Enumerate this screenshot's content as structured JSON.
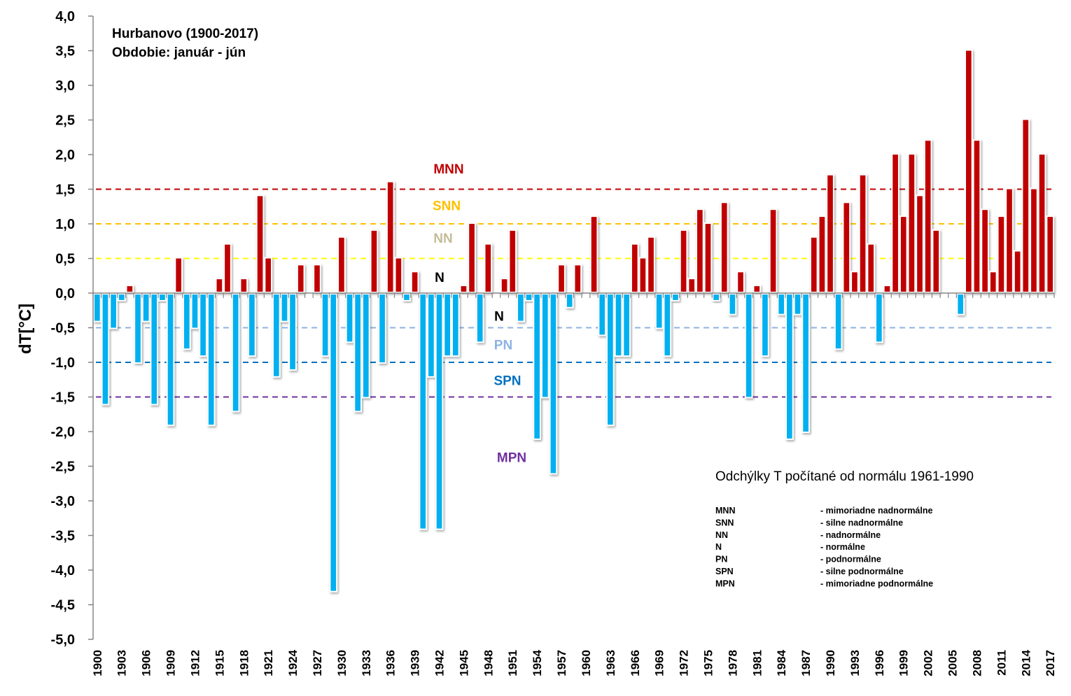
{
  "chart_data": {
    "type": "bar",
    "title": "Hurbanovo (1900-2017)",
    "subtitle": "Obdobie: január - jún",
    "xlabel": "",
    "ylabel": "dT[°C]",
    "ylim": [
      -5.0,
      4.0
    ],
    "ytick_step": 0.5,
    "ytick_labels": [
      "4,0",
      "3,5",
      "3,0",
      "2,5",
      "2,0",
      "1,5",
      "1,0",
      "0,5",
      "0,0",
      "-0,5",
      "-1,0",
      "-1,5",
      "-2,0",
      "-2,5",
      "-3,0",
      "-3,5",
      "-4,0",
      "-4,5",
      "-5,0"
    ],
    "x_start": 1900,
    "x_end": 2017,
    "xtick_labels": [
      "1900",
      "1903",
      "1906",
      "1909",
      "1912",
      "1915",
      "1918",
      "1921",
      "1924",
      "1927",
      "1930",
      "1933",
      "1936",
      "1939",
      "1942",
      "1945",
      "1948",
      "1951",
      "1954",
      "1957",
      "1960",
      "1963",
      "1966",
      "1969",
      "1972",
      "1975",
      "1978",
      "1981",
      "1984",
      "1987",
      "1990",
      "1993",
      "1996",
      "1999",
      "2002",
      "2005",
      "2008",
      "2011",
      "2014",
      "2017"
    ],
    "values": [
      -0.4,
      -1.6,
      -0.5,
      -0.1,
      0.1,
      -1.0,
      -0.4,
      -1.6,
      -0.1,
      -1.9,
      0.5,
      -0.8,
      -0.5,
      -0.9,
      -1.9,
      0.2,
      0.7,
      -1.7,
      0.2,
      -0.9,
      1.4,
      0.5,
      -1.2,
      -0.4,
      -1.1,
      0.4,
      0.0,
      0.4,
      -0.9,
      -4.3,
      0.8,
      -0.7,
      -1.7,
      -1.5,
      0.9,
      -1.0,
      1.6,
      0.5,
      -0.1,
      0.3,
      -3.4,
      -1.2,
      -3.4,
      -0.9,
      -0.9,
      0.1,
      1.0,
      -0.7,
      0.7,
      0.0,
      0.2,
      0.9,
      -0.4,
      -0.1,
      -2.1,
      -1.5,
      -2.6,
      0.4,
      -0.2,
      0.4,
      0.0,
      1.1,
      -0.6,
      -1.9,
      -0.9,
      -0.9,
      0.7,
      0.5,
      0.8,
      -0.5,
      -0.9,
      -0.1,
      0.9,
      0.2,
      1.2,
      1.0,
      -0.1,
      1.3,
      -0.3,
      0.3,
      -1.5,
      0.1,
      -0.9,
      1.2,
      -0.3,
      -2.1,
      -0.3,
      -2.0,
      0.8,
      1.1,
      1.7,
      -0.8,
      1.3,
      0.3,
      1.7,
      0.7,
      -0.7,
      0.1,
      2.0,
      1.1,
      2.0,
      1.4,
      2.2,
      0.9,
      0.0,
      0.0,
      -0.3,
      3.5,
      2.2,
      1.2,
      0.3,
      1.1,
      1.5,
      0.6,
      2.5,
      1.5,
      2.0,
      1.1
    ],
    "colors": {
      "positive": "#c00000",
      "negative": "#00b0f0"
    },
    "thresholds": [
      {
        "label": "MNN",
        "value": 1.5,
        "color": "#c00000",
        "label_value": 1.8
      },
      {
        "label": "SNN",
        "value": 1.0,
        "color": "#ffc000",
        "label_value": 1.27
      },
      {
        "label": "NN",
        "value": 0.5,
        "color": "#ffff00",
        "text_color": "#c4bd97",
        "label_value": 0.8
      },
      {
        "label": "N",
        "value": null,
        "color": "#000000",
        "label_value": 0.23
      },
      {
        "label": "N",
        "value": null,
        "color": "#000000",
        "label_value": -0.33
      },
      {
        "label": "PN",
        "value": -0.5,
        "color": "#8db3e2",
        "label_value": -0.74
      },
      {
        "label": "SPN",
        "value": -1.0,
        "color": "#0070c0",
        "label_value": -1.26
      },
      {
        "label": "MPN",
        "value": -1.5,
        "color": "#7030a0",
        "label_value": -2.37
      }
    ],
    "grid": false,
    "annotation": "Odchýlky T počítané od normálu 1961-1990",
    "legend": [
      {
        "code": "MNN",
        "desc": "- mimoriadne nadnormálne"
      },
      {
        "code": "SNN",
        "desc": "- silne nadnormálne"
      },
      {
        "code": "NN",
        "desc": "- nadnormálne"
      },
      {
        "code": "N",
        "desc": "- normálne"
      },
      {
        "code": "PN",
        "desc": "- podnormálne"
      },
      {
        "code": "SPN",
        "desc": "- silne podnormálne"
      },
      {
        "code": "MPN",
        "desc": "- mimoriadne podnormálne"
      }
    ],
    "legend_position": "bottom-right"
  }
}
